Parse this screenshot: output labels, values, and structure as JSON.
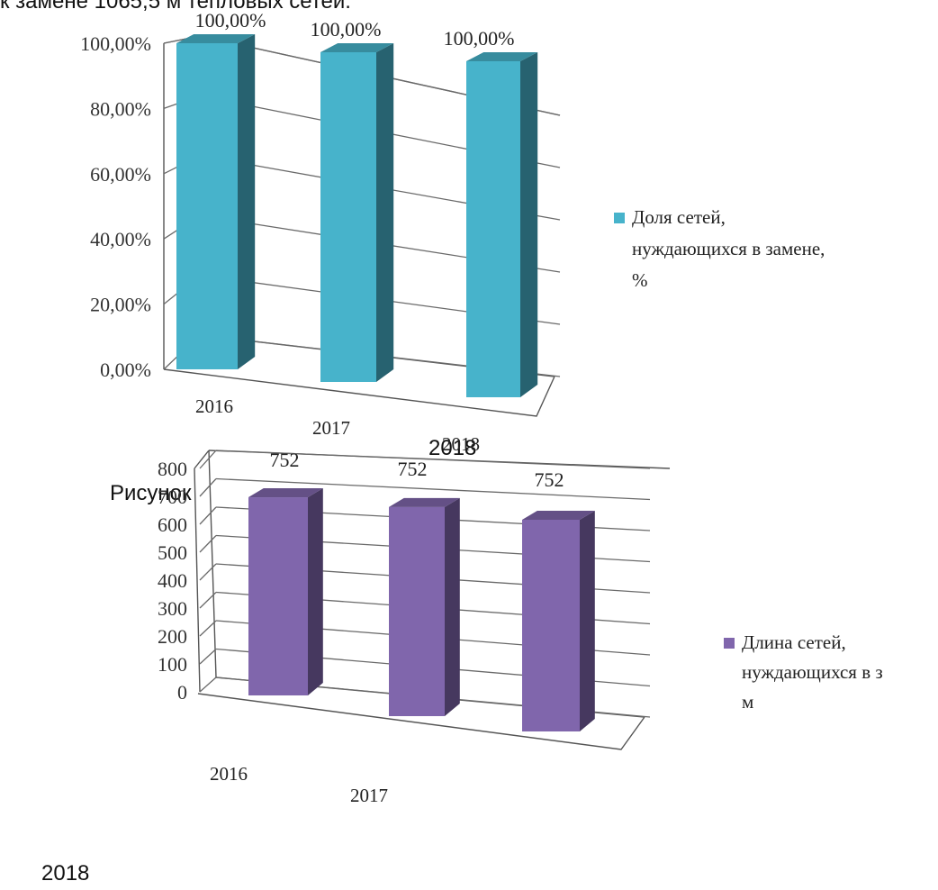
{
  "document": {
    "top_text": "к замене 1065,5 м тепловых сетей.",
    "caption": "Рисунок",
    "stray_year": "2018",
    "footer_year": "2018"
  },
  "chart_data": [
    {
      "type": "bar",
      "style": "3d-column",
      "categories": [
        "2016",
        "2017",
        "2018"
      ],
      "series": [
        {
          "name": "Доля сетей, нуждающихся в замене, %",
          "values": [
            100.0,
            100.0,
            100.0
          ],
          "color": "#47b3cb"
        }
      ],
      "data_labels": [
        "100,00%",
        "100,00%",
        "100,00%"
      ],
      "y_ticks": [
        "0,00%",
        "20,00%",
        "40,00%",
        "60,00%",
        "80,00%",
        "100,00%"
      ],
      "ylim": [
        0,
        100
      ],
      "legend_lines": [
        "Доля сетей,",
        "нуждающихся в замене,",
        "%"
      ],
      "legend_position": "right",
      "grid": true
    },
    {
      "type": "bar",
      "style": "3d-column",
      "categories": [
        "2016",
        "2017",
        "2018"
      ],
      "series": [
        {
          "name": "Длина сетей, нуждающихся в з м",
          "values": [
            752,
            752,
            752
          ],
          "color": "#8066ac"
        }
      ],
      "data_labels": [
        "752",
        "752",
        "752"
      ],
      "y_ticks": [
        "0",
        "100",
        "200",
        "300",
        "400",
        "500",
        "600",
        "700",
        "800"
      ],
      "ylim": [
        0,
        800
      ],
      "legend_lines": [
        "Длина сетей,",
        "нуждающихся в з",
        "м"
      ],
      "legend_position": "right",
      "grid": true
    }
  ]
}
